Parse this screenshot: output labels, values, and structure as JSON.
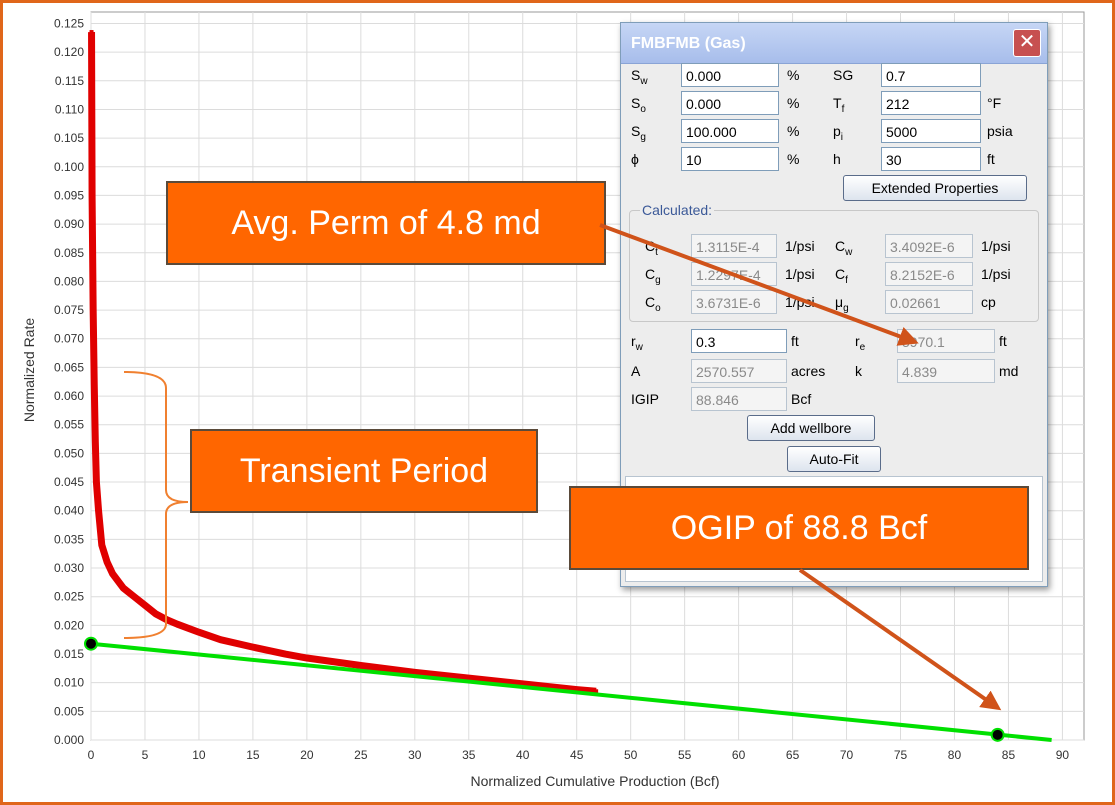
{
  "chart_data": {
    "type": "scatter",
    "xlabel": "Normalized Cumulative Production (Bcf)",
    "ylabel": "Normalized Rate",
    "xlim": [
      0,
      92
    ],
    "ylim": [
      0,
      0.127
    ],
    "xticks": [
      "0",
      "5",
      "10",
      "15",
      "20",
      "25",
      "30",
      "35",
      "40",
      "45",
      "50",
      "55",
      "60",
      "65",
      "70",
      "75",
      "80",
      "85",
      "90"
    ],
    "yticks": [
      "0.000",
      "0.005",
      "0.010",
      "0.015",
      "0.020",
      "0.025",
      "0.030",
      "0.035",
      "0.040",
      "0.045",
      "0.050",
      "0.055",
      "0.060",
      "0.065",
      "0.070",
      "0.075",
      "0.080",
      "0.085",
      "0.090",
      "0.095",
      "0.100",
      "0.105",
      "0.110",
      "0.115",
      "0.120",
      "0.125"
    ],
    "grid": true,
    "series": [
      {
        "color": "#e00000",
        "x": [
          0.05,
          0.1,
          0.15,
          0.2,
          0.3,
          0.4,
          0.5,
          0.7,
          1,
          1.5,
          2,
          3,
          4,
          5,
          6,
          7,
          8,
          10,
          12,
          15,
          18,
          20,
          25,
          30,
          35,
          40,
          45,
          46.8
        ],
        "y": [
          0.1235,
          0.095,
          0.085,
          0.075,
          0.062,
          0.052,
          0.045,
          0.04,
          0.034,
          0.031,
          0.029,
          0.0265,
          0.025,
          0.0235,
          0.022,
          0.021,
          0.0202,
          0.0188,
          0.0175,
          0.0162,
          0.015,
          0.0143,
          0.013,
          0.0118,
          0.0108,
          0.0098,
          0.0088,
          0.0085
        ]
      },
      {
        "color": "#00e000",
        "x": [
          0,
          89
        ],
        "y": [
          0.0168,
          0
        ]
      }
    ],
    "markers": [
      {
        "x": 0,
        "y": 0.0168
      },
      {
        "x": 84,
        "y": 0.0009
      }
    ]
  },
  "dialog": {
    "title": "FMBFMB (Gas)",
    "close_glyph": "✕",
    "sw_label": "S",
    "sw_sub": "w",
    "sw_value": "0.000",
    "sw_unit": "%",
    "so_label": "S",
    "so_sub": "o",
    "so_value": "0.000",
    "so_unit": "%",
    "sg_label": "S",
    "sg_sub": "g",
    "sg_value": "100.000",
    "sg_unit": "%",
    "phi_label": "ϕ",
    "phi_value": "10",
    "phi_unit": "%",
    "SG_label": "SG",
    "SG_value": "0.7",
    "tf_label": "T",
    "tf_sub": "f",
    "tf_value": "212",
    "tf_unit": "°F",
    "pi_label": "p",
    "pi_sub": "i",
    "pi_value": "5000",
    "pi_unit": "psia",
    "h_label": "h",
    "h_value": "30",
    "h_unit": "ft",
    "extended_button": "Extended Properties",
    "calculated_title": "Calculated:",
    "ct_label": "C",
    "ct_sub": "t",
    "ct_value": "1.3115E-4",
    "ct_unit": "1/psi",
    "cg_label": "C",
    "cg_sub": "g",
    "cg_value": "1.2297E-4",
    "cg_unit": "1/psi",
    "co_label": "C",
    "co_sub": "o",
    "co_value": "3.6731E-6",
    "co_unit": "1/psi",
    "cw_label": "C",
    "cw_sub": "w",
    "cw_value": "3.4092E-6",
    "cw_unit": "1/psi",
    "cf_label": "C",
    "cf_sub": "f",
    "cf_value": "8.2152E-6",
    "cf_unit": "1/psi",
    "mug_label": "μ",
    "mug_sub": "g",
    "mug_value": "0.02661",
    "mug_unit": "cp",
    "rw_label": "r",
    "rw_sub": "w",
    "rw_value": "0.3",
    "rw_unit": "ft",
    "re_label": "r",
    "re_sub": "e",
    "re_value": "5970.1",
    "re_unit": "ft",
    "A_label": "A",
    "A_value": "2570.557",
    "A_unit": "acres",
    "k_label": "k",
    "k_value": "4.839",
    "k_unit": "md",
    "igip_label": "IGIP",
    "igip_value": "88.846",
    "igip_unit": "Bcf",
    "add_wellbore_button": "Add wellbore",
    "autofit_button": "Auto-Fit"
  },
  "callouts": {
    "perm": "Avg. Perm of 4.8 md",
    "transient": "Transient Period",
    "ogip": "OGIP of 88.8 Bcf"
  },
  "colors": {
    "frame": "#e0661a",
    "callout_fill": "#ff6600",
    "arrow": "#d0531a",
    "brace": "#f08030"
  }
}
